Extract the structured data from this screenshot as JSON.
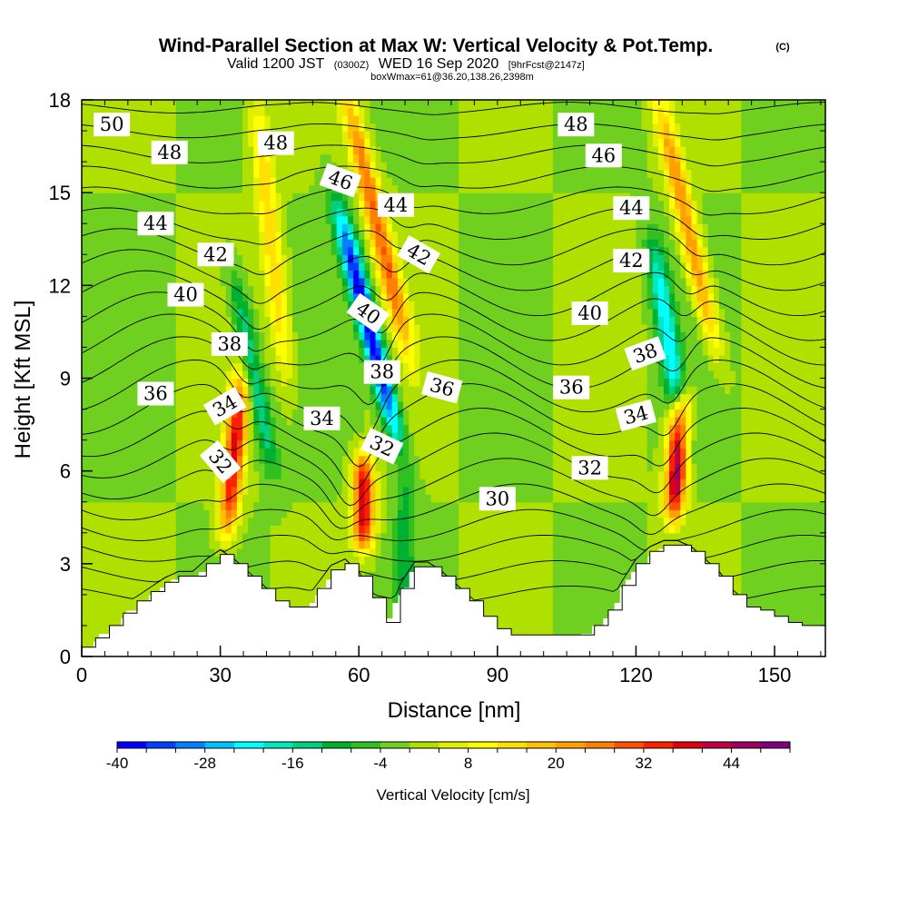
{
  "header": {
    "title": "Wind-Parallel Section at Max W: Vertical Velocity & Pot.Temp.",
    "copyright": "(C)",
    "valid_a": "Valid 1200 JST",
    "valid_b": "(0300Z)",
    "valid_c": "WED 16 Sep 2020",
    "valid_d": "[9hrFcst@2147z]",
    "boxinfo": "boxWmax=61@36.20,138.26,2398m"
  },
  "chart_data": {
    "type": "heatmap",
    "xlabel": "Distance [nm]",
    "ylabel": "Height [Kft MSL]",
    "xlim": [
      0,
      161
    ],
    "ylim": [
      0,
      18
    ],
    "x_ticks": [
      0,
      30,
      60,
      90,
      120,
      150
    ],
    "x_tick_labels": [
      "0",
      "30",
      "60",
      "90",
      "120",
      "150"
    ],
    "y_ticks": [
      0,
      3,
      6,
      9,
      12,
      15,
      18
    ],
    "y_tick_labels": [
      "0",
      "3",
      "6",
      "9",
      "12",
      "15",
      "18"
    ],
    "colorbar": {
      "label": "Vertical Velocity [cm/s]",
      "min": -40,
      "max": 48,
      "step": 4,
      "tick_values": [
        -40,
        -28,
        -16,
        -4,
        8,
        20,
        32,
        44
      ],
      "tick_labels": [
        "-40",
        "-28",
        "-16",
        "-4",
        "8",
        "20",
        "32",
        "44"
      ],
      "colors": [
        "#0000ff",
        "#0040ff",
        "#0080ff",
        "#00c0ff",
        "#00ffff",
        "#00e8c0",
        "#00d080",
        "#00b030",
        "#30c020",
        "#70d020",
        "#b0e000",
        "#e0f000",
        "#ffff00",
        "#ffe000",
        "#ffc000",
        "#ffa000",
        "#ff8000",
        "#ff5000",
        "#ff2000",
        "#e00010",
        "#c00040",
        "#a00060",
        "#800080"
      ]
    },
    "terrain_kft": {
      "x": [
        0,
        3,
        6,
        9,
        12,
        15,
        18,
        21,
        24,
        27,
        30,
        33,
        36,
        39,
        42,
        45,
        48,
        51,
        54,
        57,
        60,
        63,
        66,
        69,
        72,
        75,
        78,
        81,
        84,
        87,
        90,
        93,
        96,
        99,
        102,
        105,
        108,
        111,
        114,
        117,
        120,
        123,
        126,
        129,
        132,
        135,
        138,
        141,
        144,
        147,
        150,
        153,
        156,
        159,
        161
      ],
      "height": [
        0.3,
        0.6,
        1.0,
        1.4,
        1.8,
        2.1,
        2.4,
        2.6,
        2.6,
        3.0,
        3.3,
        3.0,
        2.6,
        2.2,
        1.8,
        1.6,
        1.6,
        2.2,
        2.8,
        3.0,
        2.6,
        1.9,
        1.1,
        2.2,
        2.9,
        2.9,
        2.6,
        2.2,
        1.8,
        1.3,
        0.9,
        0.7,
        0.7,
        0.7,
        0.7,
        0.7,
        0.7,
        1.0,
        1.5,
        2.3,
        3.0,
        3.4,
        3.6,
        3.6,
        3.4,
        3.0,
        2.6,
        2.0,
        1.6,
        1.5,
        1.3,
        1.1,
        1.0,
        1.0,
        1.0
      ]
    },
    "updraft_features": [
      {
        "x": 33,
        "z_bottom": 4.0,
        "z_top": 9.0,
        "peak_cm_s": 36,
        "tilt": 0.6
      },
      {
        "x": 41,
        "z_bottom": 9.0,
        "z_top": 18.0,
        "peak_cm_s": 16,
        "tilt": -0.7
      },
      {
        "x": 61,
        "z_bottom": 3.5,
        "z_top": 6.5,
        "peak_cm_s": 40,
        "tilt": 0.0
      },
      {
        "x": 64,
        "z_bottom": 10.0,
        "z_top": 18.0,
        "peak_cm_s": 28,
        "tilt": -1.6
      },
      {
        "x": 129,
        "z_bottom": 4.5,
        "z_top": 8.5,
        "peak_cm_s": 46,
        "tilt": 0.4
      },
      {
        "x": 131,
        "z_bottom": 10.0,
        "z_top": 18.0,
        "peak_cm_s": 24,
        "tilt": -1.5
      }
    ],
    "downdraft_features": [
      {
        "x": 37,
        "z_bottom": 6.0,
        "z_top": 12.5,
        "peak_cm_s": -16,
        "tilt": -1.3
      },
      {
        "x": 62,
        "z_bottom": 7.0,
        "z_top": 14.5,
        "peak_cm_s": -40,
        "tilt": -1.7
      },
      {
        "x": 127,
        "z_bottom": 7.0,
        "z_top": 13.5,
        "peak_cm_s": -22,
        "tilt": -1.0
      },
      {
        "x": 70,
        "z_bottom": 1.5,
        "z_top": 6.0,
        "peak_cm_s": -10,
        "tilt": 0.0
      }
    ],
    "theta_contour_levels": [
      30,
      32,
      34,
      36,
      38,
      40,
      42,
      44,
      46,
      48,
      50
    ],
    "theta_contour_labels": [
      {
        "text": "50",
        "x": 6.5,
        "z": 17.2,
        "angle": 0
      },
      {
        "text": "48",
        "x": 19,
        "z": 16.3,
        "angle": 0
      },
      {
        "text": "48",
        "x": 42,
        "z": 16.6,
        "angle": 0
      },
      {
        "text": "48",
        "x": 107,
        "z": 17.2,
        "angle": 0
      },
      {
        "text": "46",
        "x": 56,
        "z": 15.4,
        "angle": 20
      },
      {
        "text": "46",
        "x": 113,
        "z": 16.2,
        "angle": 0
      },
      {
        "text": "44",
        "x": 16,
        "z": 14.0,
        "angle": 0
      },
      {
        "text": "44",
        "x": 68,
        "z": 14.6,
        "angle": 0
      },
      {
        "text": "44",
        "x": 119,
        "z": 14.5,
        "angle": 0
      },
      {
        "text": "42",
        "x": 29,
        "z": 13.0,
        "angle": 0
      },
      {
        "text": "42",
        "x": 73,
        "z": 13.0,
        "angle": 30
      },
      {
        "text": "42",
        "x": 119,
        "z": 12.8,
        "angle": 0
      },
      {
        "text": "40",
        "x": 22.5,
        "z": 11.7,
        "angle": 0
      },
      {
        "text": "40",
        "x": 62,
        "z": 11.1,
        "angle": 35
      },
      {
        "text": "40",
        "x": 110,
        "z": 11.1,
        "angle": 0
      },
      {
        "text": "38",
        "x": 32,
        "z": 10.1,
        "angle": 0
      },
      {
        "text": "38",
        "x": 65,
        "z": 9.2,
        "angle": 0
      },
      {
        "text": "38",
        "x": 122,
        "z": 9.8,
        "angle": -20
      },
      {
        "text": "36",
        "x": 16,
        "z": 8.5,
        "angle": 0
      },
      {
        "text": "36",
        "x": 78,
        "z": 8.7,
        "angle": 15
      },
      {
        "text": "36",
        "x": 106,
        "z": 8.7,
        "angle": 0
      },
      {
        "text": "34",
        "x": 31,
        "z": 8.1,
        "angle": -30
      },
      {
        "text": "34",
        "x": 52,
        "z": 7.7,
        "angle": 0
      },
      {
        "text": "34",
        "x": 120,
        "z": 7.8,
        "angle": -15
      },
      {
        "text": "32",
        "x": 30,
        "z": 6.3,
        "angle": 50
      },
      {
        "text": "32",
        "x": 65,
        "z": 6.8,
        "angle": 25
      },
      {
        "text": "32",
        "x": 110,
        "z": 6.1,
        "angle": 0
      },
      {
        "text": "30",
        "x": 90,
        "z": 5.1,
        "angle": 0
      }
    ]
  }
}
